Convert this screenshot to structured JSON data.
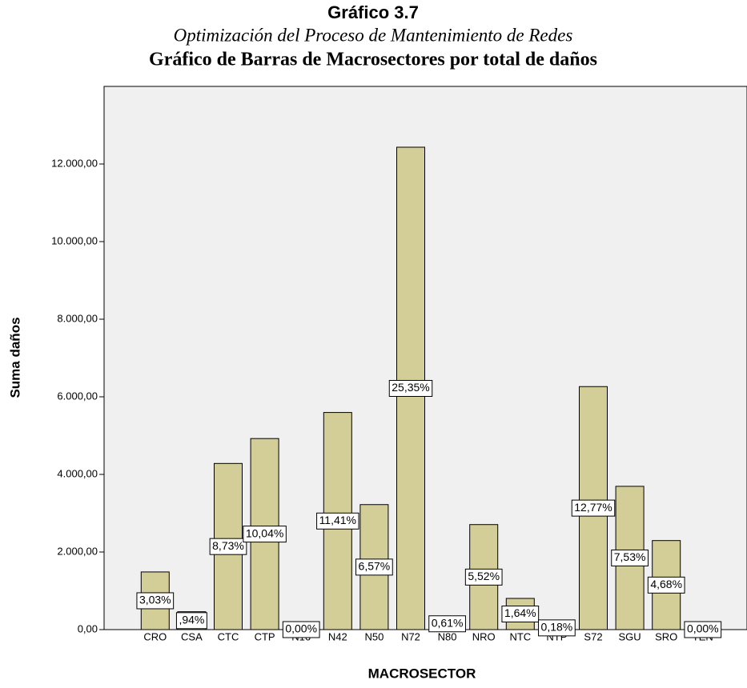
{
  "chart_data": {
    "type": "bar",
    "title": "Gráfico 3.7",
    "subtitle": "Optimización del Proceso de Mantenimiento de Redes",
    "chart_title": "Gráfico de Barras de Macrosectores por total de daños",
    "x_label": "MACROSECTOR",
    "y_label": "Suma daños",
    "categories": [
      "CRO",
      "CSA",
      "CTC",
      "CTP",
      "N16",
      "N42",
      "N50",
      "N72",
      "N80",
      "NRO",
      "NTC",
      "NTP",
      "S72",
      "SGU",
      "SRO",
      "TEN"
    ],
    "values": [
      1486,
      461,
      4282,
      4924,
      0,
      5596,
      3222,
      12433,
      299,
      2707,
      804,
      88,
      6263,
      3693,
      2295,
      0
    ],
    "value_labels": [
      "3,03%",
      ",94%",
      "8,73%",
      "10,04%",
      "0,00%",
      "11,41%",
      "6,57%",
      "25,35%",
      "0,61%",
      "5,52%",
      "1,64%",
      "0,18%",
      "12,77%",
      "7,53%",
      "4,68%",
      "0,00%"
    ],
    "color": "#d3ce97",
    "ylim": [
      0,
      14000
    ],
    "yticks": [
      {
        "value": 0,
        "label": "0,00"
      },
      {
        "value": 2000,
        "label": "2.000,00"
      },
      {
        "value": 4000,
        "label": "4.000,00"
      },
      {
        "value": 6000,
        "label": "6.000,00"
      },
      {
        "value": 8000,
        "label": "8.000,00"
      },
      {
        "value": 10000,
        "label": "10.000,00"
      },
      {
        "value": 12000,
        "label": "12.000,00"
      }
    ]
  }
}
